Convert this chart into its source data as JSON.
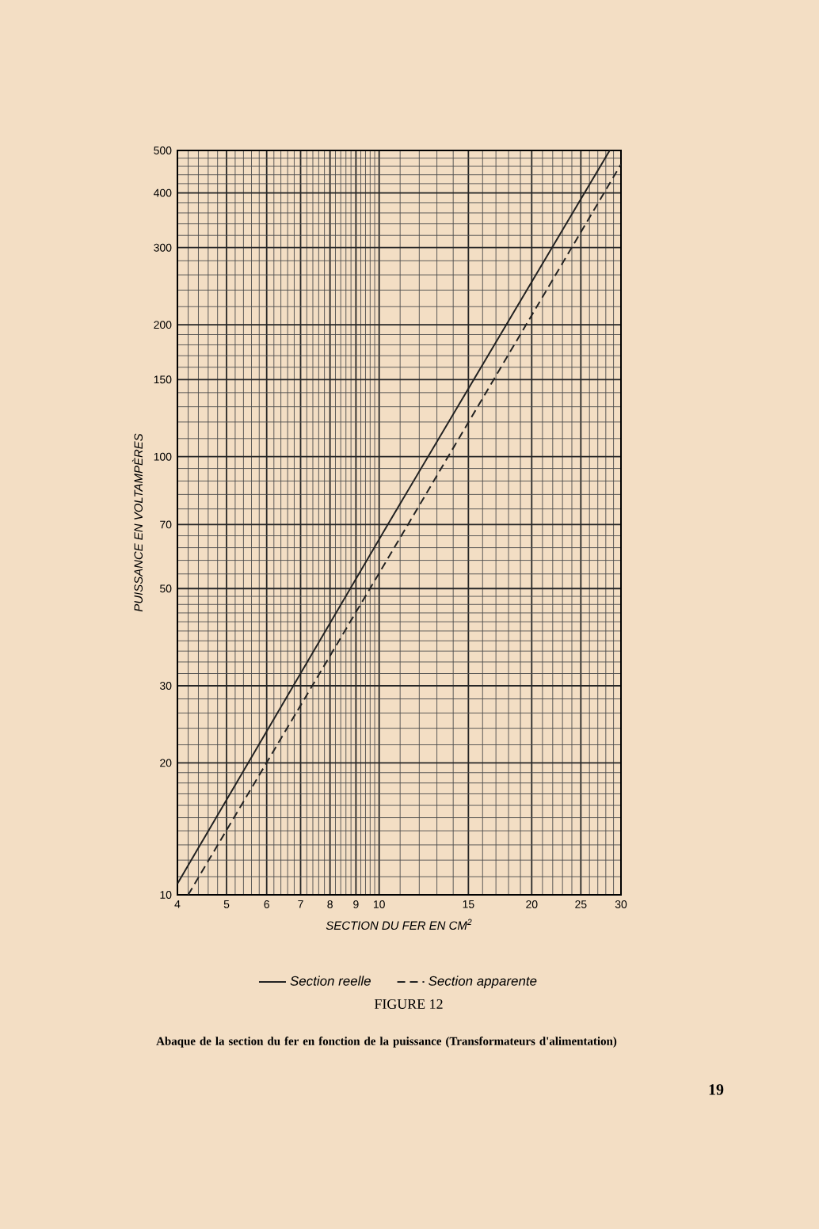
{
  "chart_data": {
    "type": "line",
    "title": "FIGURE 12",
    "subtitle": "Abaque de la section du fer en fonction de la puissance (Transformateurs d'alimentation)",
    "xlabel": "SECTION DU FER EN CM$^{2}$",
    "ylabel": "PUISSANCE EN VOLTAMPÈRES",
    "log": "xy",
    "xlim": [
      4,
      30
    ],
    "ylim": [
      10,
      500
    ],
    "xticks": [
      4,
      5,
      6,
      7,
      8,
      9,
      10,
      15,
      20,
      25,
      30
    ],
    "yticks": [
      10,
      20,
      30,
      50,
      70,
      100,
      150,
      200,
      300,
      400,
      500
    ],
    "grid": true,
    "legend": "bottom",
    "series": [
      {
        "name": "Section reelle",
        "color": "#222222",
        "line_style": "solid",
        "x": [
          4,
          10.4,
          28.5
        ],
        "values": [
          10.6,
          70,
          500
        ]
      },
      {
        "name": "Section apparente",
        "color": "#222222",
        "line_style": "dashed",
        "x": [
          4.2,
          11.4,
          30
        ],
        "values": [
          10,
          70,
          465
        ]
      }
    ],
    "annotations": [
      "19"
    ]
  }
}
